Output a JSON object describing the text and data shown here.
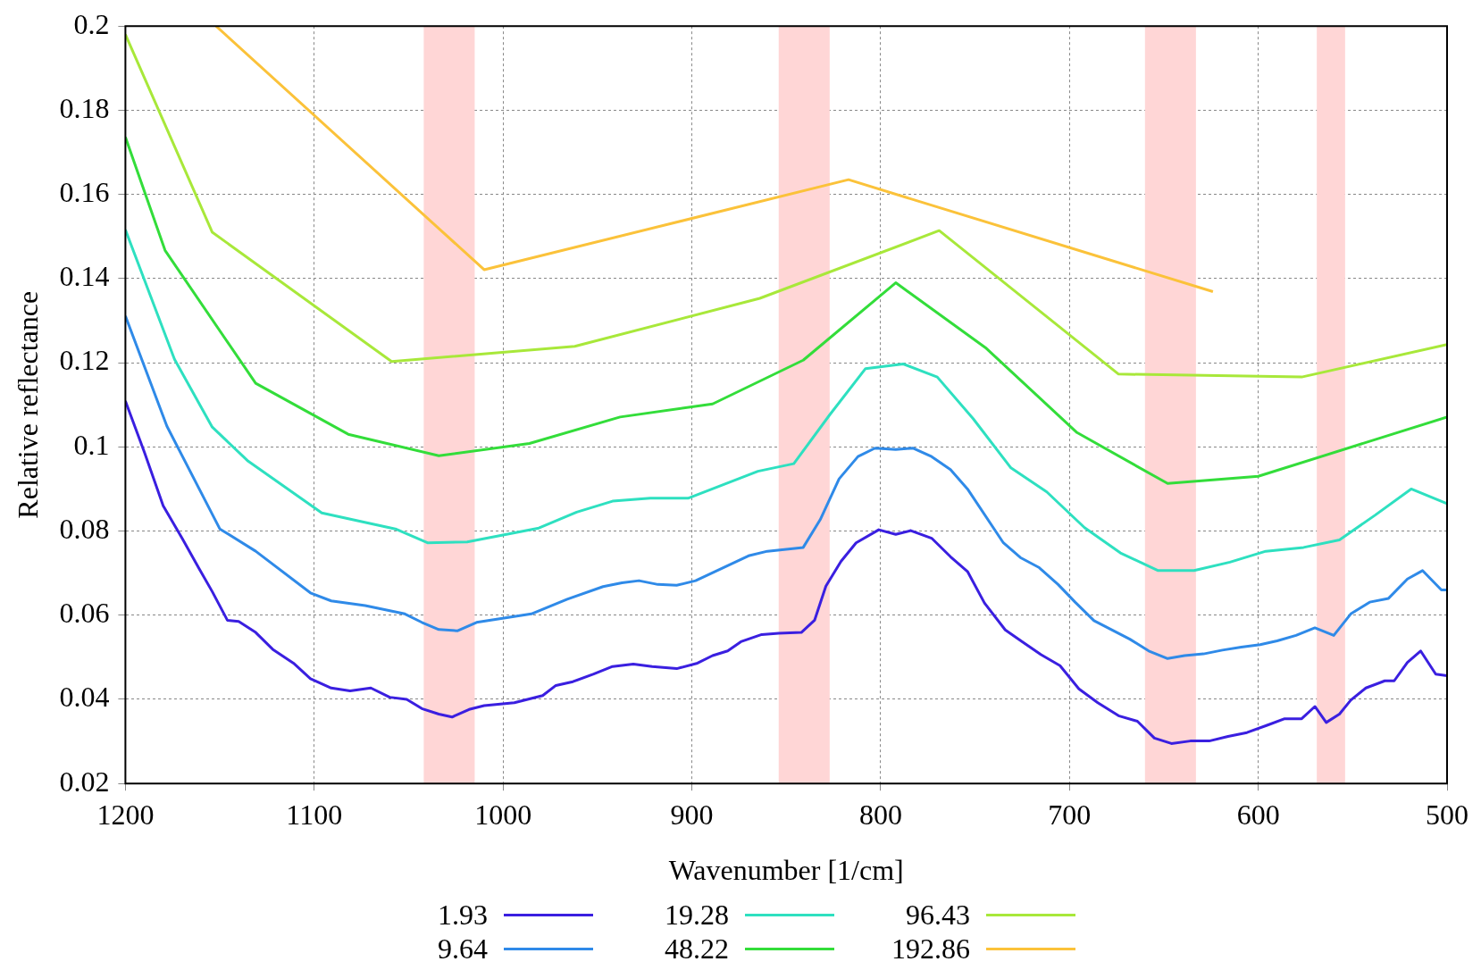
{
  "chart_data": {
    "type": "line",
    "xlabel": "Wavenumber [1/cm]",
    "ylabel": "Relative reflectance",
    "xlim": [
      1200,
      500
    ],
    "xticks": [
      1200,
      1100,
      1000,
      900,
      800,
      700,
      600,
      500
    ],
    "ylim": [
      0.02,
      0.2
    ],
    "yticks": [
      0.02,
      0.04,
      0.06,
      0.08,
      0.1,
      0.12,
      0.14,
      0.16,
      0.18,
      0.2
    ],
    "grid": true,
    "legend": "bottom",
    "marker": "none",
    "line_style": "solid",
    "bands": [
      {
        "axis": "x",
        "from": 1042,
        "to": 1015,
        "color": "#ffd6d6"
      },
      {
        "axis": "x",
        "from": 854,
        "to": 827,
        "color": "#ffd6d6"
      },
      {
        "axis": "x",
        "from": 660,
        "to": 633,
        "color": "#ffd6d6"
      },
      {
        "axis": "x",
        "from": 569,
        "to": 554,
        "color": "#ffd6d6"
      }
    ],
    "series": [
      {
        "name": "1.93",
        "color": "#3a1fe0",
        "x": [
          1200,
          1190,
          1180,
          1170,
          1161,
          1154,
          1146,
          1140,
          1131,
          1122,
          1111,
          1102,
          1091,
          1081,
          1070,
          1060,
          1051,
          1043,
          1034,
          1027,
          1018,
          1010,
          994,
          979,
          972,
          963,
          952,
          942,
          931,
          921,
          908,
          897,
          889,
          881,
          874,
          863,
          854,
          842,
          835,
          829,
          821,
          813,
          801,
          792,
          784,
          773,
          763,
          754,
          745,
          734,
          725,
          715,
          705,
          695,
          685,
          674,
          664,
          655,
          646,
          636,
          626,
          616,
          606,
          595,
          586,
          577,
          570,
          564,
          557,
          551,
          543,
          533,
          528,
          521,
          514,
          506,
          500
        ],
        "values": [
          0.1109,
          0.0988,
          0.086,
          0.0783,
          0.0711,
          0.0656,
          0.0588,
          0.0585,
          0.0559,
          0.0519,
          0.0486,
          0.0449,
          0.0427,
          0.042,
          0.0427,
          0.0405,
          0.04,
          0.0378,
          0.0365,
          0.0358,
          0.0376,
          0.0385,
          0.0392,
          0.0409,
          0.0433,
          0.0442,
          0.046,
          0.0478,
          0.0484,
          0.0478,
          0.0473,
          0.0486,
          0.0504,
          0.0515,
          0.0537,
          0.0554,
          0.0557,
          0.0559,
          0.0588,
          0.0669,
          0.0728,
          0.0772,
          0.0803,
          0.0792,
          0.0801,
          0.0783,
          0.0739,
          0.0704,
          0.0629,
          0.0565,
          0.0537,
          0.0506,
          0.048,
          0.0425,
          0.0392,
          0.0361,
          0.0348,
          0.0308,
          0.0295,
          0.0301,
          0.0301,
          0.0312,
          0.0321,
          0.0339,
          0.0354,
          0.0354,
          0.0383,
          0.0345,
          0.0365,
          0.0398,
          0.0427,
          0.0444,
          0.0444,
          0.0488,
          0.0515,
          0.046,
          0.0456
        ]
      },
      {
        "name": "9.64",
        "color": "#2f8ae8",
        "x": [
          1200,
          1178,
          1150,
          1131,
          1102,
          1091,
          1073,
          1052,
          1043,
          1034,
          1024,
          1014,
          985,
          966,
          947,
          937,
          928,
          918,
          908,
          898,
          870,
          860,
          841,
          832,
          822,
          812,
          803,
          792,
          783,
          773,
          763,
          754,
          735,
          726,
          716,
          706,
          697,
          687,
          668,
          658,
          648,
          639,
          629,
          619,
          609,
          599,
          590,
          580,
          570,
          560,
          551,
          541,
          531,
          521,
          513,
          503,
          500
        ],
        "values": [
          0.1311,
          0.1049,
          0.0805,
          0.0752,
          0.0653,
          0.0634,
          0.0623,
          0.0603,
          0.0583,
          0.0566,
          0.0563,
          0.0583,
          0.0603,
          0.0638,
          0.0668,
          0.0677,
          0.0682,
          0.0673,
          0.0671,
          0.0682,
          0.0741,
          0.0752,
          0.0761,
          0.0827,
          0.0924,
          0.0977,
          0.0997,
          0.0994,
          0.0997,
          0.0977,
          0.0946,
          0.09,
          0.0772,
          0.0737,
          0.0713,
          0.0673,
          0.0631,
          0.0587,
          0.0543,
          0.0515,
          0.0497,
          0.0504,
          0.0508,
          0.0517,
          0.0524,
          0.053,
          0.0539,
          0.0552,
          0.057,
          0.0552,
          0.0603,
          0.0631,
          0.064,
          0.0686,
          0.0706,
          0.066,
          0.066
        ]
      },
      {
        "name": "19.28",
        "color": "#2ee0c0",
        "x": [
          1200,
          1174,
          1154,
          1135,
          1096,
          1057,
          1040,
          1019,
          981,
          961,
          942,
          922,
          902,
          865,
          846,
          827,
          808,
          788,
          770,
          751,
          731,
          712,
          692,
          673,
          653,
          634,
          615,
          596,
          576,
          557,
          538,
          519,
          500
        ],
        "values": [
          0.1516,
          0.1208,
          0.1047,
          0.0966,
          0.0843,
          0.0805,
          0.0772,
          0.0774,
          0.0807,
          0.0845,
          0.0871,
          0.0878,
          0.0878,
          0.0942,
          0.096,
          0.1076,
          0.1186,
          0.1197,
          0.1166,
          0.1067,
          0.095,
          0.0893,
          0.0808,
          0.0748,
          0.0706,
          0.0706,
          0.0726,
          0.0752,
          0.0761,
          0.0779,
          0.0838,
          0.09,
          0.0865
        ]
      },
      {
        "name": "48.22",
        "color": "#33dd3a",
        "x": [
          1200,
          1179,
          1131,
          1082,
          1034,
          986,
          938,
          889,
          841,
          792,
          744,
          696,
          648,
          600,
          500
        ],
        "values": [
          0.1736,
          0.1467,
          0.1151,
          0.103,
          0.0979,
          0.1008,
          0.1071,
          0.1102,
          0.1206,
          0.139,
          0.1234,
          0.1034,
          0.0913,
          0.093,
          0.1071
        ]
      },
      {
        "name": "96.43",
        "color": "#a8e83a",
        "x": [
          1200,
          1154,
          1059,
          962,
          864,
          769,
          674,
          577,
          500
        ],
        "values": [
          0.198,
          0.151,
          0.1203,
          0.1239,
          0.1353,
          0.1514,
          0.1173,
          0.1166,
          0.1243
        ]
      },
      {
        "name": "192.86",
        "color": "#fbc23a",
        "x": [
          1152,
          1010,
          817,
          624
        ],
        "values": [
          0.2,
          0.1421,
          0.1635,
          0.1369
        ]
      }
    ]
  }
}
